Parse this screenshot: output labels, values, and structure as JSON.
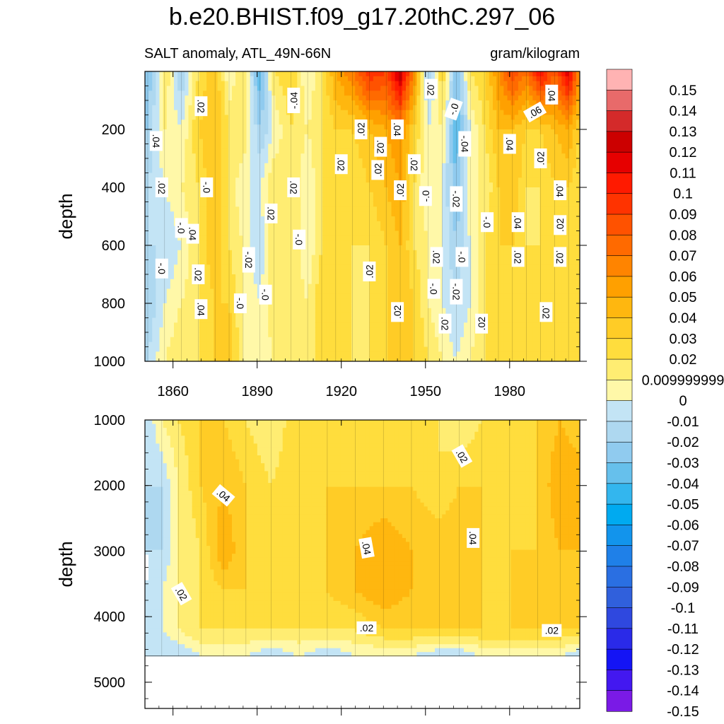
{
  "chart_data": {
    "type": "heatmap",
    "title": "b.e20.BHIST.f09_g17.20thC.297_06",
    "subtitle_left": "SALT anomaly, ATL_49N-66N",
    "subtitle_right": "gram/kilogram",
    "ylabel": "depth",
    "xlim": [
      1850,
      2005
    ],
    "x_ticks": [
      1860,
      1890,
      1920,
      1950,
      1980
    ],
    "x_tick_labels": [
      "1860",
      "1890",
      "1920",
      "1950",
      "1980"
    ],
    "panels": [
      {
        "name": "upper",
        "ylim": [
          0,
          1000
        ],
        "y_ticks": [
          200,
          400,
          600,
          800,
          1000
        ],
        "y_tick_labels": [
          "200",
          "400",
          "600",
          "800",
          "1000"
        ],
        "profiles": [
          {
            "x": 1851,
            "v": [
              -0.03,
              -0.02,
              -0.01,
              -0.01,
              -0.02,
              -0.01
            ]
          },
          {
            "x": 1857,
            "v": [
              0.02,
              0.01,
              0.0,
              -0.01,
              0.0,
              0.01
            ]
          },
          {
            "x": 1863,
            "v": [
              -0.02,
              0.0,
              0.01,
              0.0,
              0.01,
              0.02
            ]
          },
          {
            "x": 1869,
            "v": [
              0.02,
              0.03,
              0.02,
              0.02,
              0.02,
              0.02
            ]
          },
          {
            "x": 1875,
            "v": [
              0.04,
              0.04,
              0.04,
              0.04,
              0.03,
              0.03
            ]
          },
          {
            "x": 1880,
            "v": [
              0.0,
              0.02,
              0.02,
              0.02,
              0.03,
              0.04
            ]
          },
          {
            "x": 1885,
            "v": [
              0.02,
              0.02,
              0.0,
              0.01,
              0.01,
              0.01
            ]
          },
          {
            "x": 1891,
            "v": [
              -0.04,
              -0.02,
              0.0,
              -0.01,
              0.0,
              0.0
            ]
          },
          {
            "x": 1896,
            "v": [
              0.02,
              0.0,
              0.02,
              0.02,
              0.02,
              0.01
            ]
          },
          {
            "x": 1902,
            "v": [
              0.03,
              0.02,
              0.02,
              0.02,
              0.02,
              0.02
            ]
          },
          {
            "x": 1908,
            "v": [
              0.0,
              0.01,
              0.0,
              0.0,
              0.01,
              0.01
            ]
          },
          {
            "x": 1913,
            "v": [
              0.02,
              0.02,
              0.02,
              0.02,
              0.03,
              0.03
            ]
          },
          {
            "x": 1918,
            "v": [
              0.05,
              0.03,
              0.02,
              0.03,
              0.03,
              0.02
            ]
          },
          {
            "x": 1924,
            "v": [
              0.07,
              0.03,
              0.02,
              0.02,
              0.02,
              0.02
            ]
          },
          {
            "x": 1930,
            "v": [
              0.1,
              0.04,
              0.03,
              0.02,
              0.02,
              0.02
            ]
          },
          {
            "x": 1936,
            "v": [
              0.09,
              0.05,
              0.04,
              0.03,
              0.03,
              0.03
            ]
          },
          {
            "x": 1941,
            "v": [
              0.13,
              0.06,
              0.05,
              0.04,
              0.04,
              0.04
            ]
          },
          {
            "x": 1946,
            "v": [
              0.06,
              0.03,
              0.02,
              0.02,
              0.03,
              0.03
            ]
          },
          {
            "x": 1951,
            "v": [
              -0.02,
              0.0,
              0.0,
              0.01,
              0.01,
              0.02
            ]
          },
          {
            "x": 1956,
            "v": [
              0.03,
              0.01,
              0.0,
              0.0,
              0.0,
              0.01
            ]
          },
          {
            "x": 1961,
            "v": [
              -0.03,
              -0.04,
              -0.03,
              -0.02,
              -0.01,
              0.0
            ]
          },
          {
            "x": 1966,
            "v": [
              0.02,
              0.0,
              0.01,
              0.0,
              0.0,
              0.01
            ]
          },
          {
            "x": 1971,
            "v": [
              0.03,
              0.02,
              0.01,
              0.02,
              0.02,
              0.02
            ]
          },
          {
            "x": 1976,
            "v": [
              0.06,
              0.04,
              0.03,
              0.03,
              0.03,
              0.03
            ]
          },
          {
            "x": 1981,
            "v": [
              0.09,
              0.04,
              0.04,
              0.03,
              0.03,
              0.02
            ]
          },
          {
            "x": 1986,
            "v": [
              0.07,
              0.03,
              0.02,
              0.02,
              0.02,
              0.02
            ]
          },
          {
            "x": 1991,
            "v": [
              0.11,
              0.03,
              0.02,
              0.02,
              0.03,
              0.02
            ]
          },
          {
            "x": 1996,
            "v": [
              0.08,
              0.04,
              0.03,
              0.02,
              0.03,
              0.03
            ]
          },
          {
            "x": 2001,
            "v": [
              0.12,
              0.05,
              0.03,
              0.03,
              0.03,
              0.03
            ]
          },
          {
            "x": 2005,
            "v": [
              0.06,
              0.03,
              0.02,
              0.02,
              0.02,
              0.02
            ]
          }
        ],
        "profile_depths": [
          0,
          200,
          400,
          600,
          800,
          1000
        ],
        "contour_labels": [
          {
            "x": 1903,
            "y": 100,
            "text": "-.04",
            "angle": -90
          },
          {
            "x": 1870,
            "y": 120,
            "text": ".02",
            "angle": 90
          },
          {
            "x": 1846,
            "y": 230,
            "text": "-.02",
            "angle": 90
          },
          {
            "x": 1854,
            "y": 240,
            "text": ".04",
            "angle": 90
          },
          {
            "x": 1835,
            "y": 400,
            "text": "-.0",
            "angle": 90
          },
          {
            "x": 1856,
            "y": 400,
            "text": ".02",
            "angle": 90
          },
          {
            "x": 1872,
            "y": 400,
            "text": "-.0",
            "angle": 90
          },
          {
            "x": 1903,
            "y": 400,
            "text": ".02",
            "angle": 90
          },
          {
            "x": 1920,
            "y": 320,
            "text": ".02",
            "angle": 90
          },
          {
            "x": 1933,
            "y": 340,
            "text": ".02",
            "angle": -90
          },
          {
            "x": 1927,
            "y": 200,
            "text": ".02",
            "angle": -90
          },
          {
            "x": 1934,
            "y": 260,
            "text": ".02",
            "angle": 90
          },
          {
            "x": 1940,
            "y": 200,
            "text": ".04",
            "angle": 90
          },
          {
            "x": 1946,
            "y": 320,
            "text": ".02",
            "angle": 90
          },
          {
            "x": 1952,
            "y": 60,
            "text": ".02",
            "angle": 90
          },
          {
            "x": 1960,
            "y": 130,
            "text": "-.0",
            "angle": -70
          },
          {
            "x": 1964,
            "y": 250,
            "text": "-.04",
            "angle": 90
          },
          {
            "x": 1941,
            "y": 410,
            "text": ".02",
            "angle": -90
          },
          {
            "x": 1950,
            "y": 430,
            "text": "-.0",
            "angle": -90
          },
          {
            "x": 1961,
            "y": 440,
            "text": "-.02",
            "angle": 90
          },
          {
            "x": 1972,
            "y": 520,
            "text": "-.0",
            "angle": 90
          },
          {
            "x": 1980,
            "y": 250,
            "text": ".04",
            "angle": 90
          },
          {
            "x": 1989,
            "y": 140,
            "text": ".06",
            "angle": -30
          },
          {
            "x": 1995,
            "y": 80,
            "text": ".04",
            "angle": 90
          },
          {
            "x": 1991,
            "y": 300,
            "text": ".02",
            "angle": -90
          },
          {
            "x": 1998,
            "y": 410,
            "text": ".04",
            "angle": 90
          },
          {
            "x": 1998,
            "y": 530,
            "text": ".02",
            "angle": -90
          },
          {
            "x": 1998,
            "y": 640,
            "text": ".02",
            "angle": 90
          },
          {
            "x": 1983,
            "y": 520,
            "text": ".04",
            "angle": 90
          },
          {
            "x": 1983,
            "y": 640,
            "text": ".02",
            "angle": 90
          },
          {
            "x": 1863,
            "y": 540,
            "text": "-.0",
            "angle": 90
          },
          {
            "x": 1867,
            "y": 560,
            "text": ".04",
            "angle": 90
          },
          {
            "x": 1895,
            "y": 490,
            "text": ".02",
            "angle": 90
          },
          {
            "x": 1905,
            "y": 580,
            "text": "-.0",
            "angle": 90
          },
          {
            "x": 1887,
            "y": 650,
            "text": "-.02",
            "angle": 90
          },
          {
            "x": 1856,
            "y": 680,
            "text": "-.0",
            "angle": 90
          },
          {
            "x": 1869,
            "y": 700,
            "text": ".02",
            "angle": 90
          },
          {
            "x": 1893,
            "y": 770,
            "text": "-.0",
            "angle": 90
          },
          {
            "x": 1930,
            "y": 690,
            "text": ".02",
            "angle": -90
          },
          {
            "x": 1954,
            "y": 640,
            "text": ".02",
            "angle": 90
          },
          {
            "x": 1963,
            "y": 640,
            "text": "-.0",
            "angle": 90
          },
          {
            "x": 1953,
            "y": 750,
            "text": "-.0",
            "angle": 90
          },
          {
            "x": 1961,
            "y": 760,
            "text": "-.02",
            "angle": 90
          },
          {
            "x": 1870,
            "y": 820,
            "text": ".04",
            "angle": 90
          },
          {
            "x": 1884,
            "y": 800,
            "text": "-.0",
            "angle": 90
          },
          {
            "x": 1940,
            "y": 830,
            "text": ".02",
            "angle": -90
          },
          {
            "x": 1957,
            "y": 870,
            "text": ".02",
            "angle": 90
          },
          {
            "x": 1970,
            "y": 870,
            "text": ".02",
            "angle": -90
          },
          {
            "x": 1993,
            "y": 830,
            "text": ".02",
            "angle": 90
          }
        ]
      },
      {
        "name": "lower",
        "ylim": [
          1000,
          5400
        ],
        "y_ticks": [
          1000,
          2000,
          3000,
          4000,
          5000
        ],
        "y_tick_labels": [
          "1000",
          "2000",
          "3000",
          "4000",
          "5000"
        ],
        "data_bottom": 4600,
        "profiles": [
          {
            "x": 1850,
            "v": [
              -0.01,
              -0.01,
              -0.01,
              -0.01,
              -0.01,
              -0.01
            ]
          },
          {
            "x": 1856,
            "v": [
              0.01,
              -0.01,
              -0.01,
              0.0,
              0.0,
              -0.01
            ]
          },
          {
            "x": 1862,
            "v": [
              0.02,
              0.01,
              0.01,
              0.01,
              0.01,
              -0.01
            ]
          },
          {
            "x": 1870,
            "v": [
              0.03,
              0.03,
              0.02,
              0.02,
              0.02,
              0.0
            ]
          },
          {
            "x": 1878,
            "v": [
              0.03,
              0.04,
              0.05,
              0.03,
              0.02,
              0.0
            ]
          },
          {
            "x": 1886,
            "v": [
              0.02,
              0.03,
              0.03,
              0.03,
              0.02,
              0.0
            ]
          },
          {
            "x": 1895,
            "v": [
              0.01,
              0.02,
              0.03,
              0.03,
              0.02,
              -0.01
            ]
          },
          {
            "x": 1905,
            "v": [
              0.03,
              0.03,
              0.03,
              0.03,
              0.02,
              0.0
            ]
          },
          {
            "x": 1915,
            "v": [
              0.03,
              0.03,
              0.03,
              0.03,
              0.02,
              -0.01
            ]
          },
          {
            "x": 1925,
            "v": [
              0.02,
              0.03,
              0.04,
              0.04,
              0.02,
              0.0
            ]
          },
          {
            "x": 1935,
            "v": [
              0.02,
              0.03,
              0.05,
              0.05,
              0.03,
              0.0
            ]
          },
          {
            "x": 1945,
            "v": [
              0.03,
              0.03,
              0.04,
              0.04,
              0.03,
              0.0
            ]
          },
          {
            "x": 1955,
            "v": [
              0.02,
              0.02,
              0.04,
              0.04,
              0.03,
              -0.01
            ]
          },
          {
            "x": 1962,
            "v": [
              0.01,
              0.03,
              0.04,
              0.04,
              0.03,
              -0.01
            ]
          },
          {
            "x": 1970,
            "v": [
              0.02,
              0.03,
              0.03,
              0.03,
              0.03,
              0.0
            ]
          },
          {
            "x": 1980,
            "v": [
              0.03,
              0.03,
              0.03,
              0.03,
              0.03,
              0.0
            ]
          },
          {
            "x": 1990,
            "v": [
              0.03,
              0.03,
              0.03,
              0.04,
              0.03,
              0.0
            ]
          },
          {
            "x": 1998,
            "v": [
              0.04,
              0.05,
              0.04,
              0.04,
              0.03,
              0.0
            ]
          },
          {
            "x": 2005,
            "v": [
              0.03,
              0.05,
              0.04,
              0.04,
              0.03,
              -0.01
            ]
          }
        ],
        "profile_depths": [
          1000,
          2000,
          3000,
          3600,
          4200,
          4600
        ],
        "contour_labels": [
          {
            "x": 1963,
            "y": 1550,
            "text": ".02",
            "angle": 60
          },
          {
            "x": 1878,
            "y": 2150,
            "text": ".04",
            "angle": 40
          },
          {
            "x": 1929,
            "y": 2950,
            "text": ".04",
            "angle": 80
          },
          {
            "x": 1967,
            "y": 2800,
            "text": ".04",
            "angle": 90
          },
          {
            "x": 1849,
            "y": 3250,
            "text": "-.00",
            "angle": 90
          },
          {
            "x": 1863,
            "y": 3650,
            "text": ".02",
            "angle": 60
          },
          {
            "x": 1929,
            "y": 4170,
            "text": ".02",
            "angle": 0
          },
          {
            "x": 1995,
            "y": 4210,
            "text": ".02",
            "angle": 0
          }
        ]
      }
    ],
    "colorbar": {
      "levels": [
        "0.15",
        "0.14",
        "0.13",
        "0.12",
        "0.11",
        "0.1",
        "0.09",
        "0.08",
        "0.07",
        "0.06",
        "0.05",
        "0.04",
        "0.03",
        "0.02",
        "0.009999999",
        "0",
        "-0.01",
        "-0.02",
        "-0.03",
        "-0.04",
        "-0.05",
        "-0.06",
        "-0.07",
        "-0.08",
        "-0.09",
        "-0.1",
        "-0.11",
        "-0.12",
        "-0.13",
        "-0.14",
        "-0.15"
      ],
      "colors": [
        "#ffb3b3",
        "#e86a6a",
        "#d42a2a",
        "#cc0000",
        "#e60000",
        "#ff1a00",
        "#ff3300",
        "#ff5200",
        "#ff6a00",
        "#ff8400",
        "#ffa000",
        "#ffb70f",
        "#ffcc26",
        "#ffdd3d",
        "#ffed72",
        "#fff8a8",
        "#c3e4f5",
        "#aed8f0",
        "#90cbef",
        "#66c0ec",
        "#33b6ee",
        "#00aaf0",
        "#1294ec",
        "#1f80e8",
        "#2a6fe2",
        "#3060dc",
        "#2f48df",
        "#2a2ae8",
        "#1414f5",
        "#4318f0",
        "#7a1ae6"
      ]
    }
  }
}
